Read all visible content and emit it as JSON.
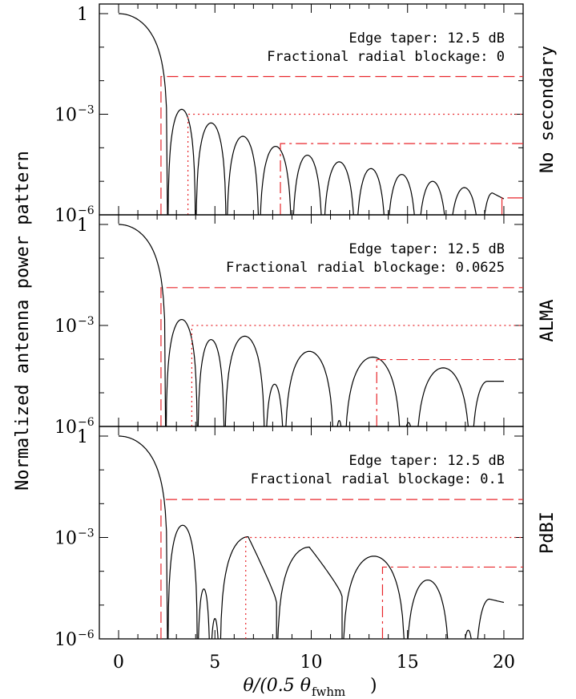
{
  "figure": {
    "ylabel": "Normalized antenna power pattern",
    "xlabel_main": "θ/(0.5 θ",
    "xlabel_sub": "fwhm",
    "xlabel_close": ")"
  },
  "chart_data": [
    {
      "type": "line",
      "panel_label": "No secondary",
      "annotation_lines": [
        "Edge taper: 12.5 dB",
        "Fractional radial blockage: 0"
      ],
      "xlim": [
        -1,
        21
      ],
      "ylim": [
        1e-06,
        2
      ],
      "yscale": "log",
      "yticks": [
        {
          "value": 1,
          "label": "1"
        },
        {
          "value": 0.001,
          "label": "10",
          "exp": "−3"
        },
        {
          "value": 1e-06,
          "label": "10",
          "exp": "−6"
        }
      ],
      "series": [
        {
          "color": "#000000",
          "lobes": [
            {
              "x0": 0,
              "x1": 2.55,
              "peak": 1,
              "xpeak": 0
            },
            {
              "x0": 2.55,
              "x1": 4.0,
              "peak": 0.0014
            },
            {
              "x0": 4.0,
              "x1": 5.6,
              "peak": 0.00055
            },
            {
              "x0": 5.6,
              "x1": 7.3,
              "peak": 0.00022
            },
            {
              "x0": 7.3,
              "x1": 9.0,
              "peak": 0.00011
            },
            {
              "x0": 9.0,
              "x1": 10.6,
              "peak": 6e-05
            },
            {
              "x0": 10.6,
              "x1": 12.3,
              "peak": 3.8e-05
            },
            {
              "x0": 12.3,
              "x1": 13.9,
              "peak": 2.4e-05
            },
            {
              "x0": 13.9,
              "x1": 15.5,
              "peak": 1.6e-05
            },
            {
              "x0": 15.5,
              "x1": 17.1,
              "peak": 1e-05
            },
            {
              "x0": 17.1,
              "x1": 18.8,
              "peak": 6.5e-06
            },
            {
              "x0": 18.8,
              "x1": 20.0,
              "peak": 4.5e-06,
              "open_end": 3e-06
            }
          ]
        }
      ],
      "reference_lines": [
        {
          "style": "dashed",
          "x": 2.2,
          "level": 0.0133
        },
        {
          "style": "dotted",
          "x": 3.6,
          "level": 0.001
        },
        {
          "style": "dashdot",
          "x": 8.4,
          "level": 0.000133
        },
        {
          "style": "longdash",
          "x": 19.9,
          "level": 3.2e-06
        }
      ]
    },
    {
      "type": "line",
      "panel_label": "ALMA",
      "annotation_lines": [
        "Edge taper: 12.5 dB",
        "Fractional radial blockage: 0.0625"
      ],
      "xlim": [
        -1,
        21
      ],
      "ylim": [
        1e-06,
        2
      ],
      "yscale": "log",
      "yticks": [
        {
          "value": 1,
          "label": "1"
        },
        {
          "value": 0.001,
          "label": "10",
          "exp": "−3"
        },
        {
          "value": 1e-06,
          "label": "10",
          "exp": "−6"
        }
      ],
      "series": [
        {
          "color": "#000000",
          "lobes": [
            {
              "x0": 0,
              "x1": 2.45,
              "peak": 1,
              "xpeak": 0
            },
            {
              "x0": 2.45,
              "x1": 4.1,
              "peak": 0.0015
            },
            {
              "x0": 4.1,
              "x1": 5.5,
              "peak": 0.00038
            },
            {
              "x0": 5.5,
              "x1": 7.6,
              "peak": 0.00048
            },
            {
              "x0": 7.6,
              "x1": 8.6,
              "peak": 1.8e-05
            },
            {
              "x0": 8.6,
              "x1": 11.2,
              "peak": 0.00017
            },
            {
              "x0": 11.2,
              "x1": 11.7,
              "peak": 1.5e-06
            },
            {
              "x0": 11.7,
              "x1": 14.7,
              "peak": 0.000115
            },
            {
              "x0": 14.7,
              "x1": 15.4,
              "peak": 1.3e-06
            },
            {
              "x0": 15.4,
              "x1": 18.3,
              "peak": 5.5e-05
            },
            {
              "x0": 18.3,
              "x1": 20.0,
              "peak": 2.2e-05,
              "open_end": 2.2e-05
            }
          ]
        }
      ],
      "reference_lines": [
        {
          "style": "dashed",
          "x": 2.2,
          "level": 0.0133
        },
        {
          "style": "dotted",
          "x": 3.8,
          "level": 0.001
        },
        {
          "style": "dashdot",
          "x": 13.4,
          "level": 9.7e-05
        }
      ]
    },
    {
      "type": "line",
      "panel_label": "PdBI",
      "annotation_lines": [
        "Edge taper: 12.5 dB",
        "Fractional radial blockage: 0.1"
      ],
      "xlim": [
        -1,
        21
      ],
      "ylim": [
        1e-06,
        2
      ],
      "yscale": "log",
      "yticks": [
        {
          "value": 1,
          "label": "1"
        },
        {
          "value": 0.001,
          "label": "10",
          "exp": "−3"
        },
        {
          "value": 1e-06,
          "label": "10",
          "exp": "−6"
        }
      ],
      "series": [
        {
          "color": "#000000",
          "lobes": [
            {
              "x0": 0,
              "x1": 2.55,
              "peak": 1,
              "xpeak": 0
            },
            {
              "x0": 2.55,
              "x1": 4.1,
              "peak": 0.0023
            },
            {
              "x0": 4.1,
              "x1": 4.75,
              "peak": 3e-05
            },
            {
              "x0": 4.75,
              "x1": 5.25,
              "peak": 4e-06
            },
            {
              "x0": 5.25,
              "x1": 8.2,
              "peak": 0.00105,
              "min_end": 2e-05
            },
            {
              "x0": 8.2,
              "x1": 11.6,
              "peak": 0.00052,
              "min_end": 3e-05
            },
            {
              "x0": 11.6,
              "x1": 14.9,
              "peak": 0.00028
            },
            {
              "x0": 14.9,
              "x1": 17.2,
              "peak": 5.5e-05
            },
            {
              "x0": 17.8,
              "x1": 18.5,
              "peak": 1.8e-06
            },
            {
              "x0": 18.5,
              "x1": 20.0,
              "peak": 1.5e-05,
              "open_end": 1.2e-05
            }
          ]
        }
      ],
      "reference_lines": [
        {
          "style": "dashed",
          "x": 2.2,
          "level": 0.0133
        },
        {
          "style": "dotted",
          "x": 6.6,
          "level": 0.001
        },
        {
          "style": "dashdot",
          "x": 13.7,
          "level": 0.000133
        }
      ]
    }
  ],
  "xaxis": {
    "ticks": [
      {
        "value": 0,
        "label": "0"
      },
      {
        "value": 5,
        "label": "5"
      },
      {
        "value": 10,
        "label": "10"
      },
      {
        "value": 15,
        "label": "15"
      },
      {
        "value": 20,
        "label": "20"
      }
    ],
    "minor_step": 1
  },
  "colors": {
    "curve": "#000000",
    "reference": "#e8262b",
    "frame": "#000000"
  }
}
